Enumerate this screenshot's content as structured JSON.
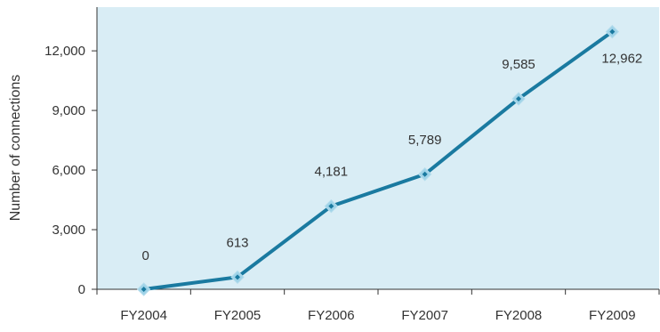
{
  "chart_data": {
    "type": "line",
    "categories": [
      "FY2004",
      "FY2005",
      "FY2006",
      "FY2007",
      "FY2008",
      "FY2009"
    ],
    "series": [
      {
        "values": [
          0,
          613,
          4181,
          5789,
          9585,
          12962
        ],
        "data_labels": [
          "0",
          "613",
          "4,181",
          "5,789",
          "9,585",
          "12,962"
        ]
      }
    ],
    "ylabel": "Number of connections",
    "xlabel": "",
    "ylim": [
      0,
      14200
    ],
    "yticks": [
      0,
      3000,
      6000,
      9000,
      12000
    ],
    "ytick_labels": [
      "0",
      "3,000",
      "6,000",
      "9,000",
      "12,000"
    ],
    "grid": false,
    "legend": "none"
  },
  "colors": {
    "plot_background": "#d9edf5",
    "line": "#1a7aa0",
    "marker_fill": "#9fd3e8",
    "marker_center": "#1a7aa0"
  }
}
